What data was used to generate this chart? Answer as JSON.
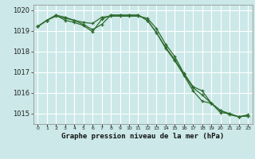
{
  "hours": [
    0,
    1,
    2,
    3,
    4,
    5,
    6,
    7,
    8,
    9,
    10,
    11,
    12,
    13,
    14,
    15,
    16,
    17,
    18,
    19,
    20,
    21,
    22,
    23
  ],
  "line1": [
    1019.2,
    1019.5,
    1019.7,
    1019.6,
    1019.5,
    1019.4,
    1019.35,
    1019.65,
    1019.7,
    1019.7,
    1019.7,
    1019.7,
    1019.6,
    1019.1,
    1018.35,
    1017.75,
    1016.95,
    1016.3,
    1016.1,
    1015.5,
    1015.05,
    1015.0,
    1014.85,
    1014.95
  ],
  "line2": [
    1019.2,
    1019.5,
    1019.75,
    1019.65,
    1019.5,
    1019.3,
    1019.05,
    1019.3,
    1019.75,
    1019.75,
    1019.75,
    1019.75,
    1019.5,
    1018.9,
    1018.2,
    1017.6,
    1016.9,
    1016.25,
    1015.9,
    1015.5,
    1015.15,
    1015.0,
    1014.85,
    1014.9
  ],
  "line3": [
    1019.2,
    1019.5,
    1019.75,
    1019.5,
    1019.4,
    1019.25,
    1018.95,
    1019.55,
    1019.75,
    1019.75,
    1019.75,
    1019.75,
    1019.5,
    1018.9,
    1018.15,
    1017.55,
    1016.85,
    1016.1,
    1015.6,
    1015.5,
    1015.15,
    1014.95,
    1014.85,
    1014.9
  ],
  "line_color": "#2d6a2d",
  "bg_color": "#cce8e8",
  "grid_color": "#ffffff",
  "xlabel": "Graphe pression niveau de la mer (hPa)",
  "ylim": [
    1014.5,
    1020.25
  ],
  "yticks": [
    1015,
    1016,
    1017,
    1018,
    1019,
    1020
  ],
  "marker": "+",
  "markersize": 3.5,
  "linewidth": 0.9
}
